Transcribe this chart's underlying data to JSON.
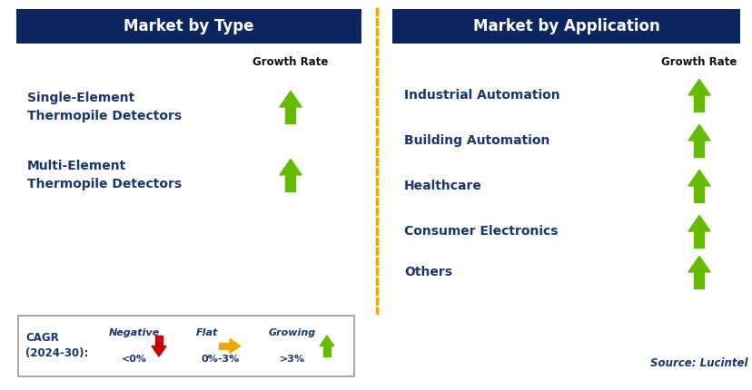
{
  "left_title": "Market by Type",
  "right_title": "Market by Application",
  "header_bg": "#0d2660",
  "header_text_color": "#ffffff",
  "left_items": [
    "Single-Element\nThermopile Detectors",
    "Multi-Element\nThermopile Detectors"
  ],
  "right_items": [
    "Industrial Automation",
    "Building Automation",
    "Healthcare",
    "Consumer Electronics",
    "Others"
  ],
  "item_text_color": "#1a3570",
  "growth_rate_label": "Growth Rate",
  "growth_rate_color": "#111111",
  "arrow_up_color": "#66bb00",
  "arrow_down_color": "#cc0000",
  "arrow_flat_color": "#f0a800",
  "dashed_line_color": "#f0a800",
  "legend_cagr_label": "CAGR\n(2024-30):",
  "legend_negative_label": "Negative",
  "legend_negative_value": "<0%",
  "legend_flat_label": "Flat",
  "legend_flat_value": "0%-3%",
  "legend_growing_label": "Growing",
  "legend_growing_value": ">3%",
  "source_text": "Source: Lucintel",
  "background_color": "#ffffff"
}
